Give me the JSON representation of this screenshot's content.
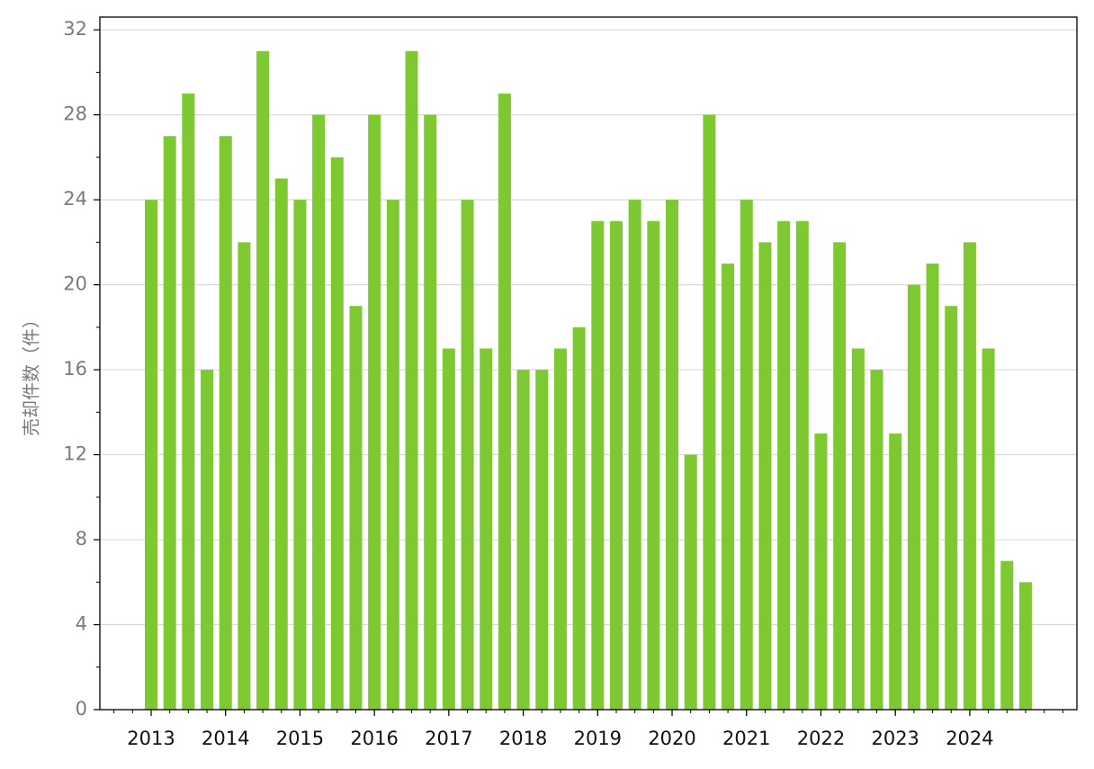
{
  "chart_data": {
    "type": "bar",
    "y_label": "売却件数（件）",
    "categories": [
      "2013",
      null,
      null,
      null,
      "2014",
      null,
      null,
      null,
      "2015",
      null,
      null,
      null,
      "2016",
      null,
      null,
      null,
      "2017",
      null,
      null,
      null,
      "2018",
      null,
      null,
      null,
      "2019",
      null,
      null,
      null,
      "2020",
      null,
      null,
      null,
      "2021",
      null,
      null,
      null,
      "2022",
      null,
      null,
      null,
      "2023",
      null,
      null,
      null,
      "2024",
      null,
      null,
      null
    ],
    "values": [
      24,
      27,
      29,
      16,
      27,
      22,
      31,
      25,
      24,
      28,
      26,
      19,
      28,
      24,
      31,
      28,
      17,
      24,
      17,
      29,
      16,
      16,
      17,
      18,
      23,
      23,
      24,
      23,
      24,
      12,
      28,
      21,
      24,
      22,
      23,
      23,
      13,
      22,
      17,
      16,
      13,
      20,
      21,
      19,
      22,
      17,
      7,
      6
    ],
    "color": "#7ec932",
    "ylim": [
      0,
      32.6
    ],
    "yticks": [
      0,
      4,
      8,
      12,
      16,
      20,
      24,
      28,
      32
    ],
    "grid": true
  }
}
